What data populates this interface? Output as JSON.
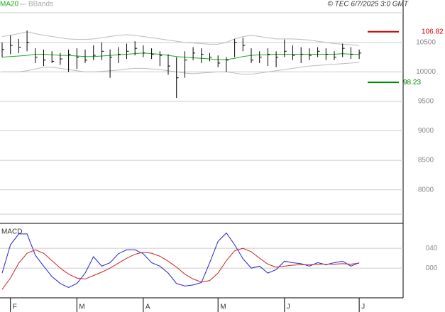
{
  "chart_data": [
    {
      "type": "ohlc",
      "copyright": "© TEC 6/7/2025 3:0 GMT",
      "close": [
        10380,
        10450,
        10420,
        10500,
        10250,
        10200,
        10180,
        10220,
        10300,
        10250,
        10200,
        10280,
        10350,
        10250,
        10300,
        10350,
        10400,
        10320,
        10300,
        10280,
        10100,
        9900,
        10200,
        10320,
        10300,
        10250,
        10150,
        10200,
        10500,
        10450,
        10200,
        10250,
        10300,
        10250,
        10350,
        10280,
        10300,
        10280,
        10350,
        10300,
        10250,
        10400,
        10300,
        10320
      ],
      "high": [
        10500,
        10620,
        10560,
        10700,
        10400,
        10380,
        10350,
        10320,
        10380,
        10400,
        10380,
        10450,
        10500,
        10380,
        10420,
        10480,
        10520,
        10450,
        10400,
        10350,
        10300,
        10250,
        10350,
        10420,
        10400,
        10320,
        10280,
        10250,
        10560,
        10580,
        10400,
        10350,
        10400,
        10350,
        10550,
        10450,
        10420,
        10400,
        10420,
        10400,
        10350,
        10480,
        10420,
        10380
      ],
      "low": [
        10250,
        10300,
        10320,
        10350,
        10150,
        10100,
        10150,
        10120,
        10000,
        10050,
        10150,
        10200,
        10200,
        9900,
        10150,
        10220,
        10280,
        10250,
        10220,
        10100,
        9950,
        9560,
        9900,
        10200,
        10150,
        10180,
        10080,
        10000,
        10250,
        10350,
        10150,
        10150,
        10100,
        10080,
        10250,
        10200,
        10150,
        10200,
        10250,
        10200,
        10200,
        10250,
        10220,
        10220
      ],
      "color": "#000000",
      "ma": {
        "name": "MA20",
        "color": "#22aa22",
        "values": [
          10250,
          10260,
          10270,
          10280,
          10300,
          10300,
          10290,
          10280,
          10280,
          10270,
          10260,
          10260,
          10270,
          10280,
          10290,
          10300,
          10310,
          10320,
          10310,
          10300,
          10280,
          10260,
          10250,
          10240,
          10230,
          10220,
          10210,
          10210,
          10230,
          10260,
          10280,
          10290,
          10290,
          10300,
          10300,
          10300,
          10300,
          10300,
          10300,
          10300,
          10300,
          10310,
          10300,
          10300
        ]
      },
      "bands": {
        "name": "BBands",
        "color": "#bbbbbb",
        "upper": [
          10600,
          10620,
          10650,
          10680,
          10650,
          10620,
          10600,
          10580,
          10560,
          10550,
          10550,
          10560,
          10580,
          10600,
          10620,
          10630,
          10620,
          10600,
          10580,
          10560,
          10540,
          10520,
          10500,
          10490,
          10480,
          10470,
          10470,
          10500,
          10560,
          10600,
          10620,
          10600,
          10580,
          10560,
          10560,
          10560,
          10550,
          10540,
          10520,
          10500,
          10480,
          10470,
          10460,
          10450
        ],
        "lower": [
          10000,
          10000,
          10000,
          10020,
          10050,
          10080,
          10080,
          10060,
          10040,
          10020,
          10000,
          10000,
          10010,
          10020,
          10030,
          10050,
          10060,
          10060,
          10050,
          10040,
          10020,
          10000,
          9980,
          9970,
          9980,
          9990,
          10000,
          10000,
          9980,
          9960,
          9960,
          9980,
          10000,
          10020,
          10040,
          10060,
          10080,
          10100,
          10110,
          10120,
          10130,
          10140,
          10150,
          10160
        ]
      },
      "levels": [
        {
          "value": 10682,
          "label": "106.82",
          "color": "#cc0000"
        },
        {
          "value": 9823,
          "label": "98.23",
          "color": "#008800"
        }
      ],
      "yticks": [
        8000,
        8500,
        9000,
        9500,
        10000,
        10500
      ],
      "ylim": [
        7430,
        11220
      ],
      "grid": true
    },
    {
      "type": "line",
      "title": "MACD",
      "categories": [
        null,
        "F",
        null,
        null,
        null,
        null,
        null,
        null,
        null,
        "M",
        null,
        null,
        null,
        null,
        null,
        null,
        null,
        "A",
        null,
        null,
        null,
        null,
        null,
        null,
        null,
        null,
        "M",
        null,
        null,
        null,
        null,
        null,
        null,
        null,
        "J",
        null,
        null,
        null,
        null,
        null,
        null,
        null,
        null,
        "J"
      ],
      "series": [
        {
          "color": "#2222cc",
          "values": [
            -10,
            47,
            69,
            69,
            26,
            4,
            -17,
            -31,
            -39,
            -31,
            -10,
            23,
            4,
            11,
            29,
            37,
            37,
            29,
            11,
            4,
            -10,
            -31,
            -36,
            -34,
            -29,
            11,
            54,
            71,
            47,
            19,
            0,
            4,
            -10,
            -3,
            14,
            11,
            9,
            4,
            11,
            7,
            11,
            14,
            4,
            11
          ]
        },
        {
          "color": "#cc2222",
          "values": [
            -43,
            -20,
            10,
            30,
            37,
            30,
            15,
            0,
            -12,
            -20,
            -22,
            -15,
            -8,
            0,
            10,
            20,
            28,
            32,
            30,
            24,
            14,
            2,
            -12,
            -22,
            -28,
            -25,
            -10,
            15,
            35,
            40,
            33,
            20,
            8,
            2,
            4,
            6,
            7,
            7,
            8,
            8,
            8,
            9,
            8,
            10
          ]
        }
      ],
      "yticks": [
        {
          "value": 0,
          "label": "000"
        },
        {
          "value": 40,
          "label": "040"
        }
      ],
      "ylim": [
        -57,
        86
      ],
      "grid": true
    }
  ]
}
